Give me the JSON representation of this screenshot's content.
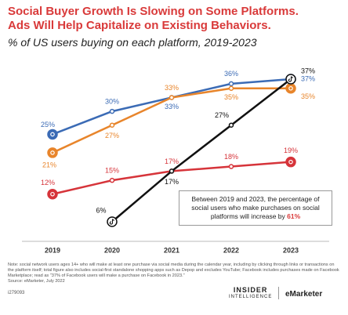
{
  "chart_data": {
    "type": "line",
    "title": [
      "Social Buyer Growth Is Slowing on Some Platforms.",
      "Ads Will Help Capitalize on Existing Behaviors."
    ],
    "subtitle": "% of US users buying on each platform, 2019-2023",
    "categories": [
      "2019",
      "2020",
      "2021",
      "2022",
      "2023"
    ],
    "series": [
      {
        "color": "#3b6bb5",
        "values": [
          25,
          30,
          33,
          36,
          37
        ],
        "value_labels": [
          "25%",
          "30%",
          "33%",
          "36%",
          "37%"
        ]
      },
      {
        "color": "#e8852b",
        "values": [
          21,
          27,
          33,
          35,
          35
        ],
        "value_labels": [
          "21%",
          "27%",
          "33%",
          "35%",
          "35%"
        ]
      },
      {
        "color": "#d6343a",
        "values": [
          12,
          15,
          17,
          18,
          19
        ],
        "value_labels": [
          "12%",
          "15%",
          "17%",
          "18%",
          "19%"
        ]
      },
      {
        "color": "#111111",
        "values": [
          null,
          6,
          17,
          27,
          37
        ],
        "value_labels": [
          null,
          "6%",
          "17%",
          "27%",
          "37%"
        ]
      }
    ],
    "annotation": {
      "text": "Between 2019 and 2023, the percentage of social users who make purchases on social platforms will increase by",
      "highlight": "61%"
    },
    "note": "Note: social network users ages 14+ who will make at least one purchase via social media during the calendar year, including by clicking through links or transactions on the platform itself; total figure also includes social-first standalone shopping apps such as Depop and excludes YouTube; Facebook includes purchases made on Facebook Marketplace; read as \"37% of Facebook users will make a purchase on Facebook in 2023.\"",
    "source": "Source: eMarketer, July 2022",
    "chart_id": "279093",
    "logo": [
      "INSIDER",
      "INTELLIGENCE",
      "eMarketer"
    ]
  }
}
